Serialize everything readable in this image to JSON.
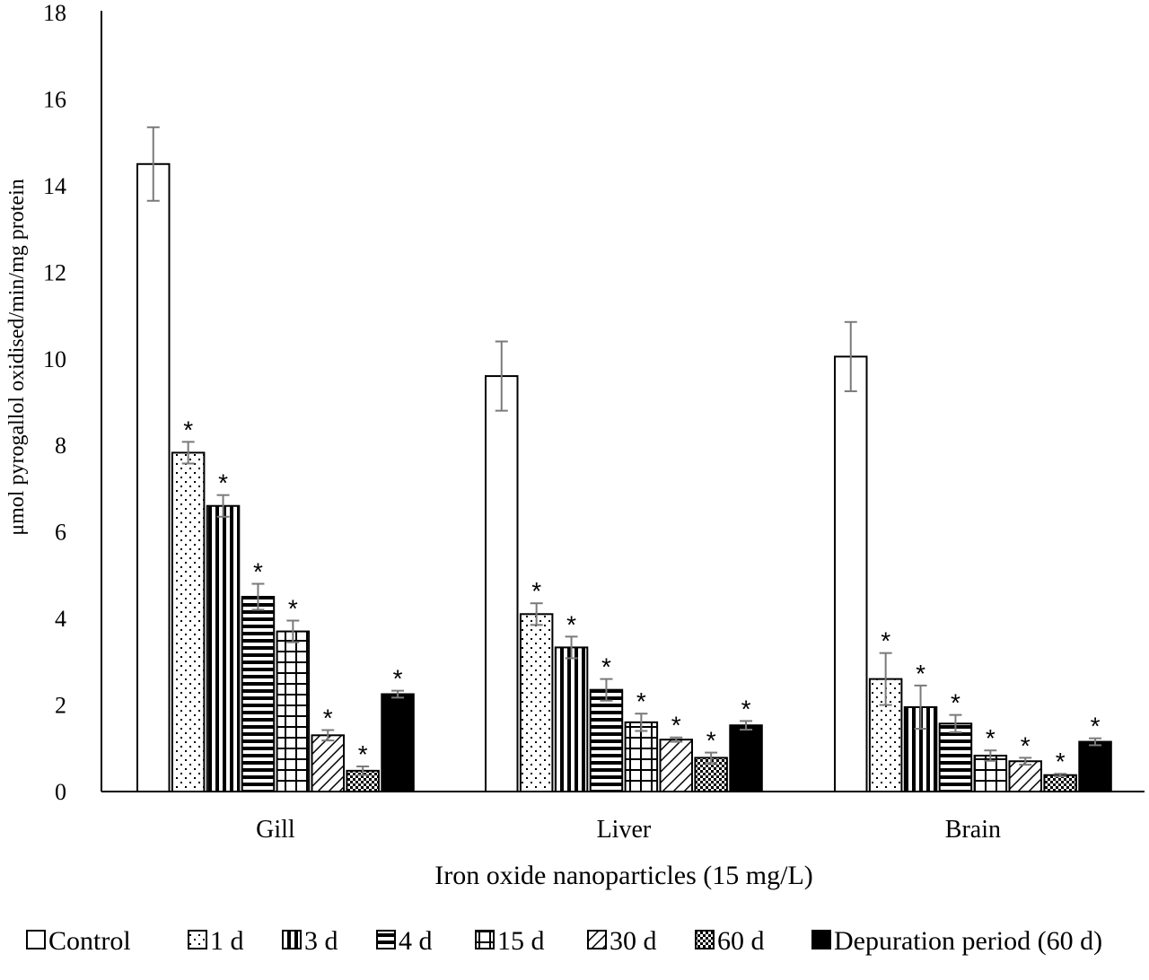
{
  "chart_data": {
    "type": "bar",
    "title": "",
    "xlabel": "Iron oxide nanoparticles (15 mg/L)",
    "ylabel": "μmol pyrogallol oxidised/min/mg protein",
    "ylim": [
      0,
      18
    ],
    "yticks": [
      0,
      2,
      4,
      6,
      8,
      10,
      12,
      14,
      16,
      18
    ],
    "categories": [
      "Gill",
      "Liver",
      "Brain"
    ],
    "significance_marker": "*",
    "legend_position": "bottom",
    "series": [
      {
        "name": "Control",
        "pattern": "white",
        "values": [
          14.5,
          9.6,
          10.05
        ],
        "errors": [
          0.85,
          0.8,
          0.8
        ],
        "significant": [
          false,
          false,
          false
        ]
      },
      {
        "name": "1 d",
        "pattern": "dots",
        "values": [
          7.83,
          4.1,
          2.6
        ],
        "errors": [
          0.25,
          0.25,
          0.6
        ],
        "significant": [
          true,
          true,
          true
        ]
      },
      {
        "name": "3 d",
        "pattern": "vertical",
        "values": [
          6.6,
          3.33,
          1.95
        ],
        "errors": [
          0.25,
          0.25,
          0.5
        ],
        "significant": [
          true,
          true,
          true
        ]
      },
      {
        "name": "4 d",
        "pattern": "horizontal",
        "values": [
          4.5,
          2.35,
          1.57
        ],
        "errors": [
          0.3,
          0.25,
          0.2
        ],
        "significant": [
          true,
          true,
          true
        ]
      },
      {
        "name": "15 d",
        "pattern": "grid",
        "values": [
          3.7,
          1.6,
          0.83
        ],
        "errors": [
          0.25,
          0.2,
          0.12
        ],
        "significant": [
          true,
          true,
          true
        ]
      },
      {
        "name": "30 d",
        "pattern": "diagonal",
        "values": [
          1.3,
          1.2,
          0.7
        ],
        "errors": [
          0.12,
          0.05,
          0.08
        ],
        "significant": [
          true,
          true,
          true
        ]
      },
      {
        "name": "60 d",
        "pattern": "checker",
        "values": [
          0.48,
          0.78,
          0.38
        ],
        "errors": [
          0.1,
          0.12,
          0.03
        ],
        "significant": [
          true,
          true,
          true
        ]
      },
      {
        "name": "Depuration period (60 d)",
        "pattern": "black",
        "values": [
          2.25,
          1.53,
          1.15
        ],
        "errors": [
          0.08,
          0.1,
          0.08
        ],
        "significant": [
          true,
          true,
          true
        ]
      }
    ]
  }
}
